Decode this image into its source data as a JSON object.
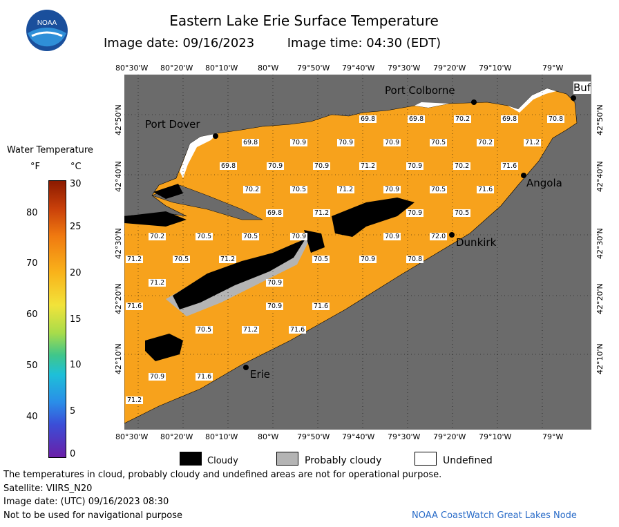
{
  "header": {
    "title": "Eastern Lake Erie Surface Temperature",
    "image_date_label": "Image date: 09/16/2023",
    "image_time_label": "Image time: 04:30 (EDT)",
    "logo_text": "NOAA"
  },
  "legend": {
    "title": "Water Temperature",
    "unit_f": "°F",
    "unit_c": "°C",
    "f_ticks": [
      "80",
      "70",
      "60",
      "50",
      "40"
    ],
    "c_ticks": [
      "30",
      "25",
      "20",
      "15",
      "10",
      "5",
      "0"
    ]
  },
  "axes": {
    "longitudes": [
      "80°30'W",
      "80°20'W",
      "80°10'W",
      "80°W",
      "79°50'W",
      "79°40'W",
      "79°30'W",
      "79°20'W",
      "79°10'W",
      "79°W"
    ],
    "latitudes": [
      "42°50'N",
      "42°40'N",
      "42°30'N",
      "42°20'N",
      "42°10'N"
    ]
  },
  "cities": [
    "Port Colborne",
    "Buf",
    "Port Dover",
    "Angola",
    "Dunkirk",
    "Erie"
  ],
  "temps": [
    "69.8",
    "69.8",
    "70.2",
    "69.8",
    "70.8",
    "69.8",
    "70.9",
    "70.9",
    "70.9",
    "70.5",
    "70.2",
    "71.2",
    "69.8",
    "70.9",
    "70.9",
    "71.2",
    "70.9",
    "70.2",
    "71.6",
    "70.2",
    "70.5",
    "71.2",
    "70.9",
    "70.5",
    "71.6",
    "69.8",
    "71.2",
    "70.9",
    "70.5",
    "70.2",
    "70.5",
    "70.5",
    "70.9",
    "72.0",
    "70.9",
    "71.2",
    "70.5",
    "70.9",
    "70.8",
    "71.2",
    "70.5",
    "70.9",
    "71.6",
    "70.9",
    "71.6",
    "70.5",
    "71.2",
    "71.6",
    "71.2",
    "70.9",
    "71.6",
    "71.2"
  ],
  "key": {
    "cloudy": "Cloudy",
    "probably_cloudy": "Probably cloudy",
    "undefined": "Undefined"
  },
  "footer": {
    "line1": "The temperatures in cloud, probably cloudy and undefined areas are not for operational purpose.",
    "line2": "Satellite: VIIRS_N20",
    "line3": "Image date: (UTC) 09/16/2023   08:30",
    "line4": "Not to be used for navigational purpose",
    "credit": "NOAA CoastWatch Great Lakes Node"
  },
  "colors": {
    "land": "#6b6b6b",
    "water": "#f7a21c",
    "cloud": "#000000",
    "probable": "#b4b4b4"
  }
}
